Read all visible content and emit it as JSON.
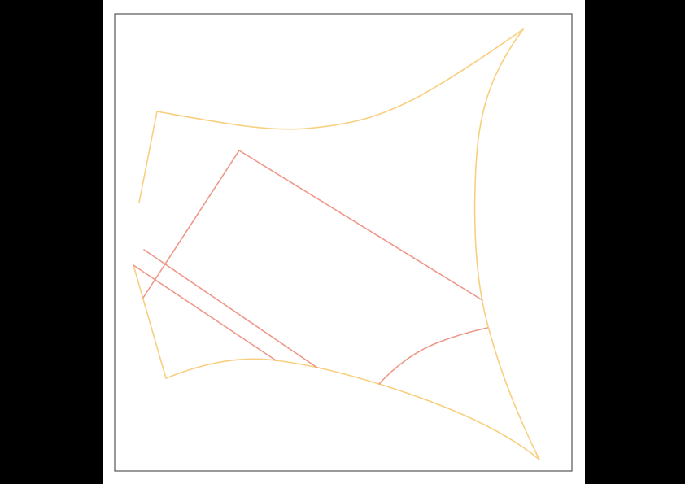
{
  "colors": {
    "background_outer": "#000000",
    "page": "#ffffff",
    "frame": "#555555",
    "outline_yellow": "#f7cf7e",
    "line_red": "#ee9788"
  },
  "drawing": {
    "yellow_curves": [
      "outline-left-top",
      "outline-top-edge",
      "outline-right-edge",
      "outline-bottom-edge",
      "outline-left-lower"
    ],
    "red_lines": [
      "red-rectangle-polyline",
      "red-diagonal-line-1",
      "red-diagonal-line-2",
      "red-lower-arc"
    ]
  }
}
